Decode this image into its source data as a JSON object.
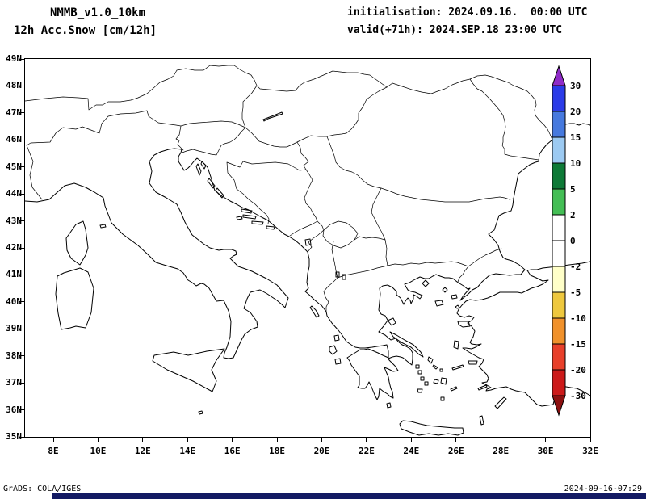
{
  "header": {
    "model_title": "NMMB_v1.0_10km",
    "product_title": "12h Acc.Snow [cm/12h]",
    "init_line": "initialisation: 2024.09.16.  00:00 UTC",
    "valid_line": "valid(+71h): 2024.SEP.18 23:00 UTC"
  },
  "map": {
    "lat_labels": [
      "49N",
      "48N",
      "47N",
      "46N",
      "45N",
      "44N",
      "43N",
      "42N",
      "41N",
      "40N",
      "39N",
      "38N",
      "37N",
      "36N",
      "35N"
    ],
    "lon_labels": [
      "8E",
      "10E",
      "12E",
      "14E",
      "16E",
      "18E",
      "20E",
      "22E",
      "24E",
      "26E",
      "28E",
      "30E",
      "32E"
    ]
  },
  "colorbar": {
    "tick_labels": [
      "30",
      "20",
      "15",
      "10",
      "5",
      "2",
      "0",
      "-2",
      "-5",
      "-10",
      "-15",
      "-20",
      "-30"
    ],
    "colors": [
      "#8F2BC8",
      "#2B3BE8",
      "#4679DE",
      "#9CCAF2",
      "#0E7A37",
      "#44BE55",
      "#FFFFFF",
      "#FFFFFF",
      "#FFFFC8",
      "#EEC83E",
      "#F0912B",
      "#E8402A",
      "#CC1A1A",
      "#8C1010"
    ]
  },
  "footer": {
    "credit": "GrADS: COLA/IGES",
    "timestamp": "2024-09-16-07:29"
  }
}
